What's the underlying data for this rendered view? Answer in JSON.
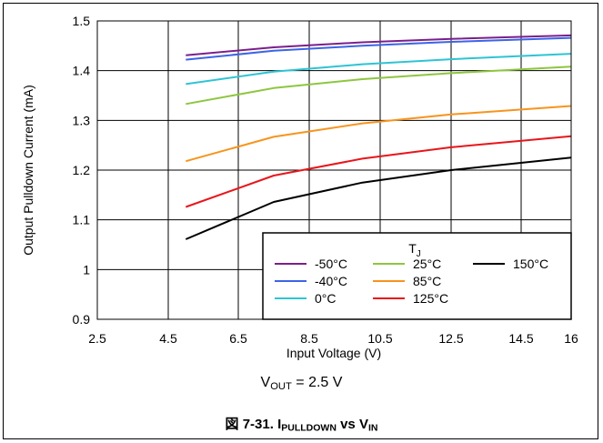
{
  "chart_data": {
    "type": "line",
    "xlabel": "Input Voltage (V)",
    "ylabel": "Output Pulldown Current (mA)",
    "xlim": [
      2.5,
      16
    ],
    "ylim": [
      0.9,
      1.5
    ],
    "x_ticks": [
      "2.5",
      "4.5",
      "6.5",
      "8.5",
      "10.5",
      "12.5",
      "14.5",
      "16"
    ],
    "y_ticks": [
      "0.9",
      "1",
      "1.1",
      "1.2",
      "1.3",
      "1.4",
      "1.5"
    ],
    "grid": true,
    "legend": {
      "title": "T",
      "title_sub": "J",
      "placement": "bottom-right"
    },
    "series": [
      {
        "name": "-50°C",
        "color": "#7B1F8C",
        "x": [
          5,
          7.5,
          10,
          12.5,
          16
        ],
        "values": [
          1.431,
          1.447,
          1.457,
          1.464,
          1.471
        ]
      },
      {
        "name": "-40°C",
        "color": "#3C64E6",
        "x": [
          5,
          7.5,
          10,
          12.5,
          16
        ],
        "values": [
          1.422,
          1.44,
          1.45,
          1.458,
          1.466
        ]
      },
      {
        "name": "0°C",
        "color": "#2EC4D4",
        "x": [
          5,
          7.5,
          10,
          12.5,
          16
        ],
        "values": [
          1.373,
          1.398,
          1.413,
          1.423,
          1.434
        ]
      },
      {
        "name": "25°C",
        "color": "#8DC63F",
        "x": [
          5,
          7.5,
          10,
          12.5,
          16
        ],
        "values": [
          1.333,
          1.365,
          1.383,
          1.395,
          1.408
        ]
      },
      {
        "name": "85°C",
        "color": "#F7941D",
        "x": [
          5,
          7.5,
          10,
          12.5,
          16
        ],
        "values": [
          1.218,
          1.267,
          1.294,
          1.312,
          1.329
        ]
      },
      {
        "name": "125°C",
        "color": "#E8161B",
        "x": [
          5,
          7.5,
          10,
          12.5,
          16
        ],
        "values": [
          1.126,
          1.189,
          1.223,
          1.246,
          1.268
        ]
      },
      {
        "name": "150°C",
        "color": "#000000",
        "x": [
          5,
          7.5,
          10,
          12.5,
          16
        ],
        "values": [
          1.061,
          1.136,
          1.175,
          1.2,
          1.225
        ]
      }
    ]
  },
  "condition": {
    "prefix": "V",
    "sub": "OUT",
    "suffix": " = 2.5 V"
  },
  "caption": {
    "prefix": "図 7-31. I",
    "sub1": "PULLDOWN",
    "middle": " vs V",
    "sub2": "IN"
  }
}
